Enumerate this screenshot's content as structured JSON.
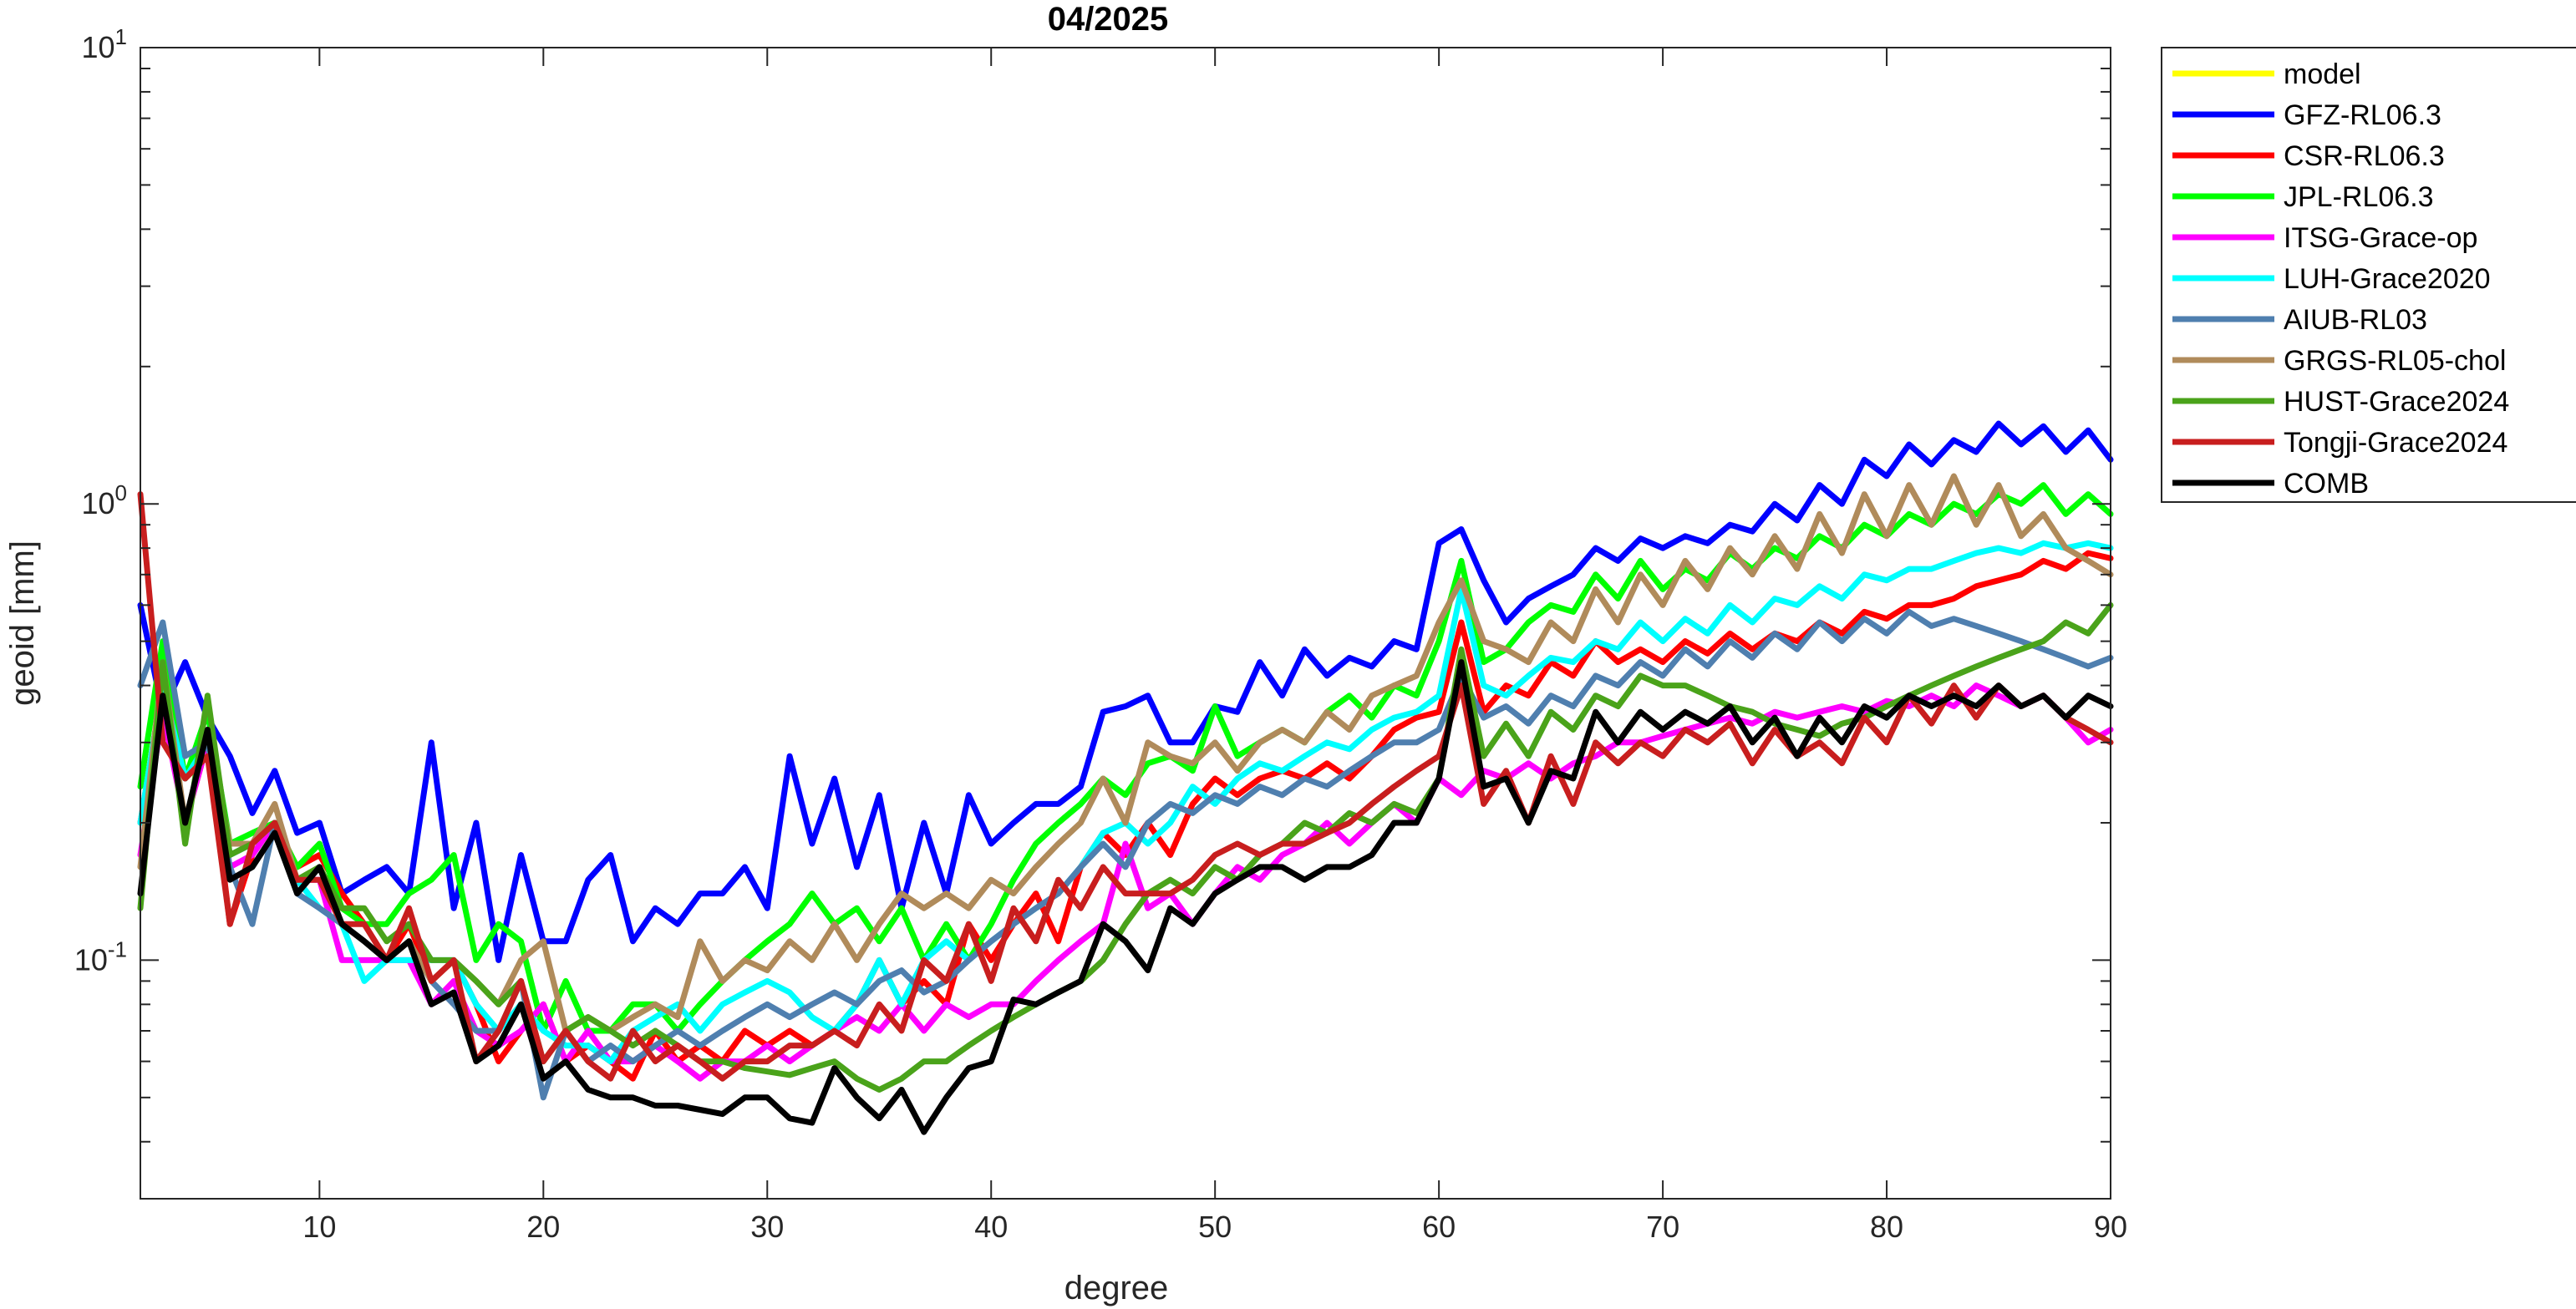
{
  "chart_data": {
    "type": "line",
    "title": "04/2025",
    "xlabel": "degree",
    "ylabel": "geoid [mm]",
    "xlim": [
      2,
      90
    ],
    "ylim": [
      0.03,
      10
    ],
    "yscale": "log",
    "grid": false,
    "legend_position": "outside-top-right",
    "x_ticks": [
      10,
      20,
      30,
      40,
      50,
      60,
      70,
      80,
      90
    ],
    "x_tick_labels": [
      "10",
      "20",
      "30",
      "40",
      "50",
      "60",
      "70",
      "80",
      "90"
    ],
    "y_major_ticks": [
      {
        "value": 10,
        "base": "10",
        "exp": "1"
      },
      {
        "value": 1,
        "base": "10",
        "exp": "0"
      },
      {
        "value": 0.1,
        "base": "10",
        "exp": "-1"
      }
    ],
    "series": [
      {
        "name": "model",
        "color": "#ffff00",
        "values": []
      },
      {
        "name": "GFZ-RL06.3",
        "color": "#0000ff",
        "values": [
          0.6,
          0.35,
          0.45,
          0.34,
          0.28,
          0.21,
          0.26,
          0.19,
          0.2,
          0.14,
          0.15,
          0.16,
          0.14,
          0.3,
          0.13,
          0.2,
          0.1,
          0.17,
          0.11,
          0.11,
          0.15,
          0.17,
          0.11,
          0.13,
          0.12,
          0.14,
          0.14,
          0.16,
          0.13,
          0.28,
          0.18,
          0.25,
          0.16,
          0.23,
          0.13,
          0.2,
          0.14,
          0.23,
          0.18,
          0.2,
          0.22,
          0.22,
          0.24,
          0.35,
          0.36,
          0.38,
          0.3,
          0.3,
          0.36,
          0.35,
          0.45,
          0.38,
          0.48,
          0.42,
          0.46,
          0.44,
          0.5,
          0.48,
          0.82,
          0.88,
          0.68,
          0.55,
          0.62,
          0.66,
          0.7,
          0.8,
          0.75,
          0.84,
          0.8,
          0.85,
          0.82,
          0.9,
          0.87,
          1.0,
          0.92,
          1.1,
          1.0,
          1.25,
          1.15,
          1.35,
          1.22,
          1.38,
          1.3,
          1.5,
          1.35,
          1.48,
          1.3,
          1.45,
          1.25
        ]
      },
      {
        "name": "CSR-RL06.3",
        "color": "#ff0000",
        "values": [
          0.2,
          0.4,
          0.2,
          0.3,
          0.12,
          0.17,
          0.2,
          0.16,
          0.17,
          0.14,
          0.12,
          0.1,
          0.12,
          0.09,
          0.1,
          0.08,
          0.06,
          0.07,
          0.08,
          0.06,
          0.065,
          0.06,
          0.055,
          0.07,
          0.06,
          0.065,
          0.06,
          0.07,
          0.065,
          0.07,
          0.065,
          0.07,
          0.08,
          0.1,
          0.08,
          0.09,
          0.08,
          0.12,
          0.1,
          0.12,
          0.14,
          0.11,
          0.16,
          0.19,
          0.17,
          0.2,
          0.17,
          0.22,
          0.25,
          0.23,
          0.25,
          0.26,
          0.25,
          0.27,
          0.25,
          0.28,
          0.32,
          0.34,
          0.35,
          0.55,
          0.35,
          0.4,
          0.38,
          0.45,
          0.42,
          0.5,
          0.45,
          0.48,
          0.45,
          0.5,
          0.47,
          0.52,
          0.48,
          0.52,
          0.5,
          0.55,
          0.52,
          0.58,
          0.56,
          0.6,
          0.6,
          0.62,
          0.66,
          0.68,
          0.7,
          0.75,
          0.72,
          0.78,
          0.76
        ]
      },
      {
        "name": "JPL-RL06.3",
        "color": "#00ff00",
        "values": [
          0.24,
          0.5,
          0.25,
          0.35,
          0.18,
          0.19,
          0.2,
          0.16,
          0.18,
          0.13,
          0.12,
          0.12,
          0.14,
          0.15,
          0.17,
          0.1,
          0.12,
          0.11,
          0.07,
          0.09,
          0.07,
          0.07,
          0.08,
          0.08,
          0.07,
          0.08,
          0.09,
          0.1,
          0.11,
          0.12,
          0.14,
          0.12,
          0.13,
          0.11,
          0.13,
          0.1,
          0.12,
          0.1,
          0.12,
          0.15,
          0.18,
          0.2,
          0.22,
          0.25,
          0.23,
          0.27,
          0.28,
          0.26,
          0.36,
          0.28,
          0.3,
          0.32,
          0.3,
          0.35,
          0.38,
          0.34,
          0.4,
          0.38,
          0.5,
          0.75,
          0.45,
          0.48,
          0.55,
          0.6,
          0.58,
          0.7,
          0.62,
          0.75,
          0.65,
          0.72,
          0.68,
          0.78,
          0.72,
          0.8,
          0.76,
          0.85,
          0.8,
          0.9,
          0.85,
          0.95,
          0.9,
          1.0,
          0.95,
          1.05,
          1.0,
          1.1,
          0.95,
          1.05,
          0.95
        ]
      },
      {
        "name": "ITSG-Grace-op",
        "color": "#ff00ff",
        "values": [
          0.17,
          0.35,
          0.2,
          0.3,
          0.16,
          0.17,
          0.2,
          0.15,
          0.15,
          0.1,
          0.1,
          0.1,
          0.1,
          0.08,
          0.09,
          0.07,
          0.065,
          0.07,
          0.08,
          0.06,
          0.07,
          0.06,
          0.06,
          0.065,
          0.06,
          0.055,
          0.06,
          0.06,
          0.065,
          0.06,
          0.065,
          0.07,
          0.075,
          0.07,
          0.08,
          0.07,
          0.08,
          0.075,
          0.08,
          0.08,
          0.09,
          0.1,
          0.11,
          0.12,
          0.18,
          0.13,
          0.14,
          0.12,
          0.14,
          0.16,
          0.15,
          0.17,
          0.18,
          0.2,
          0.18,
          0.2,
          0.22,
          0.2,
          0.25,
          0.23,
          0.26,
          0.25,
          0.27,
          0.25,
          0.27,
          0.28,
          0.3,
          0.3,
          0.31,
          0.32,
          0.33,
          0.34,
          0.33,
          0.35,
          0.34,
          0.35,
          0.36,
          0.35,
          0.37,
          0.36,
          0.38,
          0.36,
          0.4,
          0.38,
          0.36,
          0.38,
          0.34,
          0.3,
          0.32
        ]
      },
      {
        "name": "LUH-Grace2020",
        "color": "#00ffff",
        "values": [
          0.2,
          0.4,
          0.25,
          0.3,
          0.17,
          0.18,
          0.2,
          0.15,
          0.13,
          0.12,
          0.09,
          0.1,
          0.1,
          0.1,
          0.1,
          0.08,
          0.07,
          0.08,
          0.07,
          0.065,
          0.065,
          0.06,
          0.07,
          0.075,
          0.08,
          0.07,
          0.08,
          0.085,
          0.09,
          0.085,
          0.075,
          0.07,
          0.08,
          0.1,
          0.08,
          0.1,
          0.11,
          0.1,
          0.11,
          0.12,
          0.13,
          0.14,
          0.16,
          0.19,
          0.2,
          0.18,
          0.2,
          0.24,
          0.22,
          0.25,
          0.27,
          0.26,
          0.28,
          0.3,
          0.29,
          0.32,
          0.34,
          0.35,
          0.38,
          0.65,
          0.4,
          0.38,
          0.42,
          0.46,
          0.45,
          0.5,
          0.48,
          0.55,
          0.5,
          0.56,
          0.52,
          0.6,
          0.55,
          0.62,
          0.6,
          0.66,
          0.62,
          0.7,
          0.68,
          0.72,
          0.72,
          0.75,
          0.78,
          0.8,
          0.78,
          0.82,
          0.8,
          0.82,
          0.8
        ]
      },
      {
        "name": "AIUB-RL03",
        "color": "#4f7faf",
        "values": [
          0.4,
          0.55,
          0.28,
          0.3,
          0.16,
          0.12,
          0.2,
          0.14,
          0.13,
          0.12,
          0.11,
          0.1,
          0.11,
          0.09,
          0.08,
          0.07,
          0.07,
          0.09,
          0.05,
          0.07,
          0.06,
          0.065,
          0.06,
          0.065,
          0.07,
          0.065,
          0.07,
          0.075,
          0.08,
          0.075,
          0.08,
          0.085,
          0.08,
          0.09,
          0.095,
          0.085,
          0.09,
          0.1,
          0.11,
          0.12,
          0.13,
          0.14,
          0.16,
          0.18,
          0.16,
          0.2,
          0.22,
          0.21,
          0.23,
          0.22,
          0.24,
          0.23,
          0.25,
          0.24,
          0.26,
          0.28,
          0.3,
          0.3,
          0.32,
          0.42,
          0.34,
          0.36,
          0.33,
          0.38,
          0.36,
          0.42,
          0.4,
          0.45,
          0.42,
          0.48,
          0.44,
          0.5,
          0.46,
          0.52,
          0.48,
          0.55,
          0.5,
          0.56,
          0.52,
          0.58,
          0.54,
          0.56,
          0.54,
          0.52,
          0.5,
          0.48,
          0.46,
          0.44,
          0.46
        ]
      },
      {
        "name": "GRGS-RL05-chol",
        "color": "#b08b5b",
        "values": [
          0.16,
          0.45,
          0.2,
          0.32,
          0.18,
          0.18,
          0.22,
          0.15,
          0.16,
          0.12,
          0.11,
          0.1,
          0.11,
          0.09,
          0.1,
          0.09,
          0.08,
          0.1,
          0.11,
          0.07,
          0.075,
          0.07,
          0.075,
          0.08,
          0.075,
          0.11,
          0.09,
          0.1,
          0.095,
          0.11,
          0.1,
          0.12,
          0.1,
          0.12,
          0.14,
          0.13,
          0.14,
          0.13,
          0.15,
          0.14,
          0.16,
          0.18,
          0.2,
          0.25,
          0.2,
          0.3,
          0.28,
          0.27,
          0.3,
          0.26,
          0.3,
          0.32,
          0.3,
          0.35,
          0.32,
          0.38,
          0.4,
          0.42,
          0.55,
          0.68,
          0.5,
          0.48,
          0.45,
          0.55,
          0.5,
          0.65,
          0.55,
          0.7,
          0.6,
          0.75,
          0.65,
          0.8,
          0.7,
          0.85,
          0.72,
          0.95,
          0.78,
          1.05,
          0.85,
          1.1,
          0.9,
          1.15,
          0.9,
          1.1,
          0.85,
          0.95,
          0.8,
          0.75,
          0.7
        ]
      },
      {
        "name": "HUST-Grace2024",
        "color": "#4aa31a",
        "values": [
          0.13,
          0.45,
          0.18,
          0.38,
          0.17,
          0.18,
          0.2,
          0.15,
          0.16,
          0.13,
          0.13,
          0.11,
          0.12,
          0.1,
          0.1,
          0.09,
          0.08,
          0.09,
          0.06,
          0.07,
          0.075,
          0.07,
          0.065,
          0.07,
          0.065,
          0.06,
          0.06,
          0.058,
          0.057,
          0.056,
          0.058,
          0.06,
          0.055,
          0.052,
          0.055,
          0.06,
          0.06,
          0.065,
          0.07,
          0.075,
          0.08,
          0.085,
          0.09,
          0.1,
          0.12,
          0.14,
          0.15,
          0.14,
          0.16,
          0.15,
          0.17,
          0.18,
          0.2,
          0.19,
          0.21,
          0.2,
          0.22,
          0.21,
          0.25,
          0.48,
          0.28,
          0.33,
          0.28,
          0.35,
          0.32,
          0.38,
          0.36,
          0.42,
          0.4,
          0.4,
          0.38,
          0.36,
          0.35,
          0.33,
          0.32,
          0.31,
          0.33,
          0.34,
          0.36,
          0.38,
          0.4,
          0.42,
          0.44,
          0.46,
          0.48,
          0.5,
          0.55,
          0.52,
          0.6
        ]
      },
      {
        "name": "Tongji-Grace2024",
        "color": "#c81e1e",
        "values": [
          1.05,
          0.3,
          0.25,
          0.28,
          0.12,
          0.18,
          0.2,
          0.15,
          0.15,
          0.12,
          0.12,
          0.1,
          0.13,
          0.09,
          0.1,
          0.06,
          0.07,
          0.09,
          0.06,
          0.07,
          0.06,
          0.055,
          0.07,
          0.06,
          0.065,
          0.06,
          0.055,
          0.06,
          0.06,
          0.065,
          0.065,
          0.07,
          0.065,
          0.08,
          0.07,
          0.1,
          0.09,
          0.12,
          0.09,
          0.13,
          0.11,
          0.15,
          0.13,
          0.16,
          0.14,
          0.14,
          0.14,
          0.15,
          0.17,
          0.18,
          0.17,
          0.18,
          0.18,
          0.19,
          0.2,
          0.22,
          0.24,
          0.26,
          0.28,
          0.4,
          0.22,
          0.26,
          0.2,
          0.28,
          0.22,
          0.3,
          0.27,
          0.3,
          0.28,
          0.32,
          0.3,
          0.33,
          0.27,
          0.32,
          0.28,
          0.3,
          0.27,
          0.34,
          0.3,
          0.38,
          0.33,
          0.4,
          0.34,
          0.4,
          0.36,
          0.38,
          0.34,
          0.32,
          0.3
        ]
      },
      {
        "name": "COMB",
        "color": "#000000",
        "values": [
          0.14,
          0.38,
          0.2,
          0.32,
          0.15,
          0.16,
          0.19,
          0.14,
          0.16,
          0.12,
          0.11,
          0.1,
          0.11,
          0.08,
          0.085,
          0.06,
          0.065,
          0.08,
          0.055,
          0.06,
          0.052,
          0.05,
          0.05,
          0.048,
          0.048,
          0.047,
          0.046,
          0.05,
          0.05,
          0.045,
          0.044,
          0.058,
          0.05,
          0.045,
          0.052,
          0.042,
          0.05,
          0.058,
          0.06,
          0.082,
          0.08,
          0.085,
          0.09,
          0.12,
          0.11,
          0.095,
          0.13,
          0.12,
          0.14,
          0.15,
          0.16,
          0.16,
          0.15,
          0.16,
          0.16,
          0.17,
          0.2,
          0.2,
          0.25,
          0.45,
          0.24,
          0.25,
          0.2,
          0.26,
          0.25,
          0.35,
          0.3,
          0.35,
          0.32,
          0.35,
          0.33,
          0.36,
          0.3,
          0.34,
          0.28,
          0.34,
          0.3,
          0.36,
          0.34,
          0.38,
          0.36,
          0.38,
          0.36,
          0.4,
          0.36,
          0.38,
          0.34,
          0.38,
          0.36
        ]
      }
    ]
  }
}
